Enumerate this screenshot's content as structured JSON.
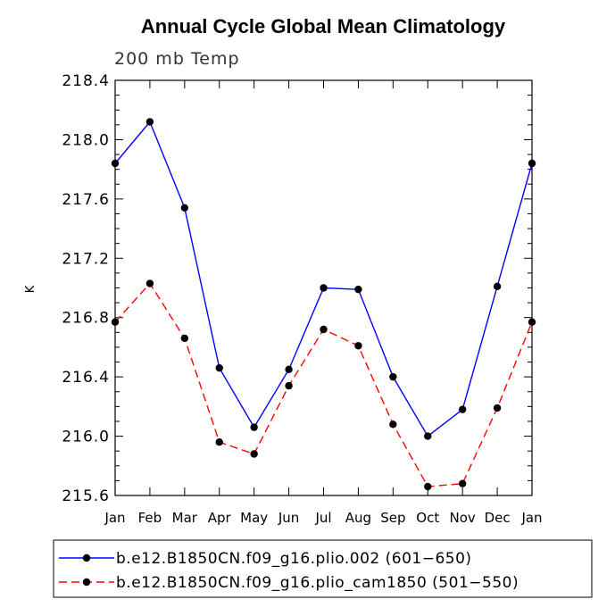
{
  "chart_data": {
    "type": "line",
    "title": "Annual Cycle Global Mean Climatology",
    "subtitle": "200 mb Temp",
    "xlabel": "",
    "ylabel": "K",
    "categories": [
      "Jan",
      "Feb",
      "Mar",
      "Apr",
      "May",
      "Jun",
      "Jul",
      "Aug",
      "Sep",
      "Oct",
      "Nov",
      "Dec",
      "Jan"
    ],
    "ylim": [
      215.6,
      218.4
    ],
    "yticks": [
      "215.6",
      "216.0",
      "216.4",
      "216.8",
      "217.2",
      "217.6",
      "218.0",
      "218.4"
    ],
    "series": [
      {
        "name": "b.e12.B1850CN.f09_g16.plio.002 (601−650)",
        "color": "#0000ff",
        "dash": "solid",
        "values": [
          217.84,
          218.12,
          217.54,
          216.46,
          216.06,
          216.45,
          217.0,
          216.99,
          216.4,
          216.0,
          216.18,
          217.01,
          217.84
        ]
      },
      {
        "name": "b.e12.B1850CN.f09_g16.plio_cam1850 (501−550)",
        "color": "#ff0000",
        "dash": "dashed",
        "values": [
          216.77,
          217.03,
          216.66,
          215.96,
          215.88,
          216.34,
          216.72,
          216.61,
          216.08,
          215.66,
          215.68,
          216.19,
          216.77
        ]
      }
    ]
  }
}
